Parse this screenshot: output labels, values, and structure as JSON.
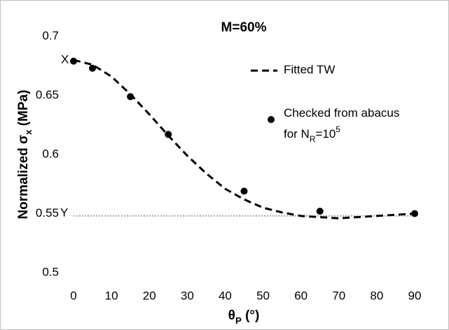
{
  "chart_data": {
    "type": "line",
    "title": "M=60%",
    "xlabel": [
      {
        "text": "θ"
      },
      {
        "text": "P",
        "sub": true
      },
      {
        "text": " (°)"
      }
    ],
    "ylabel": [
      {
        "text": "Normalized σ"
      },
      {
        "text": "x",
        "sub": true
      },
      {
        "text": " (MPa)"
      }
    ],
    "xlim": [
      0,
      90
    ],
    "xticks": [
      0,
      10,
      20,
      30,
      40,
      50,
      60,
      70,
      80,
      90
    ],
    "ylim": [
      0.5,
      0.7
    ],
    "yticks": [
      0.5,
      0.55,
      0.6,
      0.65,
      0.7
    ],
    "grid": false,
    "series": [
      {
        "name": [
          {
            "text": "Fitted TW"
          }
        ],
        "type": "line",
        "color": "#000000",
        "dashed": true,
        "x": [
          0,
          5,
          10,
          15,
          20,
          25,
          30,
          35,
          40,
          45,
          50,
          55,
          60,
          65,
          70,
          75,
          80,
          85,
          90
        ],
        "values": [
          0.68,
          0.676,
          0.666,
          0.651,
          0.634,
          0.616,
          0.599,
          0.584,
          0.571,
          0.562,
          0.555,
          0.551,
          0.548,
          0.547,
          0.546,
          0.547,
          0.548,
          0.549,
          0.55
        ]
      },
      {
        "name": [
          {
            "text": "Checked from abacus"
          },
          {
            "text": "for N"
          },
          {
            "text": "R",
            "sub": true
          },
          {
            "text": "=10"
          },
          {
            "text": "5",
            "sup": true
          }
        ],
        "type": "scatter",
        "color": "#000000",
        "x": [
          0,
          5,
          15,
          25,
          45,
          65,
          90
        ],
        "values": [
          0.679,
          0.673,
          0.649,
          0.617,
          0.569,
          0.552,
          0.55
        ]
      }
    ],
    "reference_line": {
      "value": 0.548,
      "label": "Y"
    },
    "annotations": [
      {
        "text": "X",
        "x": 0,
        "y": 0.68
      }
    ]
  }
}
